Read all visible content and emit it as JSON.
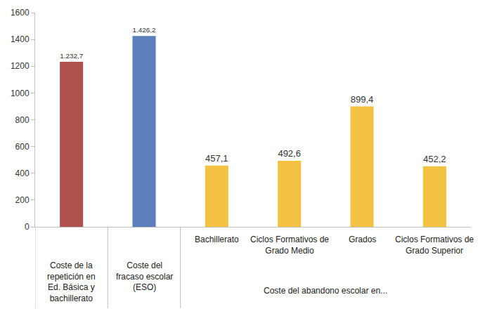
{
  "chart_data": {
    "type": "bar",
    "categories": [
      "Coste de la repetición en Ed. Básica y bachillerato",
      "Coste del fracaso escolar (ESO)",
      "Bachillerato",
      "Ciclos Formativos de Grado Medio",
      "Grados",
      "Ciclos Formativos de Grado Superior"
    ],
    "values": [
      1232.7,
      1426.2,
      457.1,
      492.6,
      899.4,
      452.2
    ],
    "value_labels": [
      "1.232,7",
      "1.426,2",
      "457,1",
      "492,6",
      "899,4",
      "452,2"
    ],
    "colors": [
      "#b0504c",
      "#5b7fbd",
      "#f4c243",
      "#f4c243",
      "#f4c243",
      "#f4c243"
    ],
    "ylim": [
      0,
      1600
    ],
    "yticks": [
      0,
      200,
      400,
      600,
      800,
      1000,
      1200,
      1400,
      1600
    ],
    "grid": false,
    "data_labels": true,
    "annotations": [
      {
        "text": "Coste del abandono escolar en...",
        "from": "Bachillerato",
        "to": "Ciclos Formativos de Grado Superior"
      }
    ]
  }
}
